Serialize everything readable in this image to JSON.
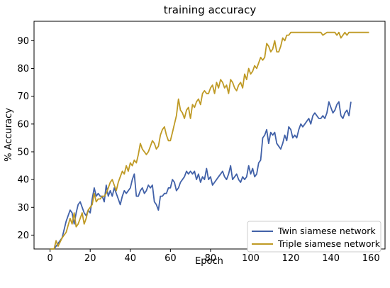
{
  "chart_data": {
    "type": "line",
    "title": "training accuracy",
    "xlabel": "Epoch",
    "ylabel": "% Accuracy",
    "xlim": [
      -8,
      167
    ],
    "ylim": [
      15,
      97
    ],
    "x_ticks": [
      0,
      20,
      40,
      60,
      80,
      100,
      120,
      140,
      160
    ],
    "y_ticks": [
      20,
      30,
      40,
      50,
      60,
      70,
      80,
      90
    ],
    "grid": false,
    "legend_position": "lower right",
    "series": [
      {
        "name": "Twin siamese network",
        "color": "#4161a8",
        "points": [
          [
            0,
            15
          ],
          [
            2,
            15
          ],
          [
            4,
            17
          ],
          [
            6,
            19
          ],
          [
            8,
            25
          ],
          [
            10,
            29
          ],
          [
            11,
            28
          ],
          [
            12,
            24
          ],
          [
            13,
            28
          ],
          [
            14,
            31
          ],
          [
            15,
            32
          ],
          [
            16,
            30
          ],
          [
            17,
            28
          ],
          [
            18,
            27
          ],
          [
            19,
            29
          ],
          [
            20,
            28
          ],
          [
            21,
            33
          ],
          [
            22,
            37
          ],
          [
            23,
            34
          ],
          [
            24,
            35
          ],
          [
            25,
            34
          ],
          [
            26,
            34
          ],
          [
            27,
            32
          ],
          [
            28,
            38
          ],
          [
            29,
            34
          ],
          [
            30,
            36
          ],
          [
            31,
            34
          ],
          [
            32,
            37
          ],
          [
            33,
            35
          ],
          [
            34,
            33
          ],
          [
            35,
            31
          ],
          [
            36,
            34
          ],
          [
            37,
            36
          ],
          [
            38,
            35
          ],
          [
            39,
            36
          ],
          [
            40,
            37
          ],
          [
            41,
            40
          ],
          [
            42,
            42
          ],
          [
            43,
            34
          ],
          [
            44,
            34
          ],
          [
            45,
            36
          ],
          [
            46,
            37
          ],
          [
            47,
            35
          ],
          [
            48,
            36
          ],
          [
            49,
            38
          ],
          [
            50,
            37
          ],
          [
            51,
            38
          ],
          [
            52,
            32
          ],
          [
            53,
            31
          ],
          [
            54,
            29
          ],
          [
            55,
            34
          ],
          [
            56,
            34
          ],
          [
            57,
            35
          ],
          [
            58,
            35
          ],
          [
            59,
            37
          ],
          [
            60,
            37
          ],
          [
            61,
            40
          ],
          [
            62,
            39
          ],
          [
            63,
            36
          ],
          [
            64,
            37
          ],
          [
            65,
            39
          ],
          [
            66,
            40
          ],
          [
            67,
            41
          ],
          [
            68,
            43
          ],
          [
            69,
            42
          ],
          [
            70,
            43
          ],
          [
            71,
            42
          ],
          [
            72,
            43
          ],
          [
            73,
            40
          ],
          [
            74,
            42
          ],
          [
            75,
            39
          ],
          [
            76,
            41
          ],
          [
            77,
            40
          ],
          [
            78,
            44
          ],
          [
            79,
            40
          ],
          [
            80,
            41
          ],
          [
            81,
            38
          ],
          [
            82,
            39
          ],
          [
            83,
            40
          ],
          [
            84,
            41
          ],
          [
            85,
            42
          ],
          [
            86,
            43
          ],
          [
            87,
            41
          ],
          [
            88,
            40
          ],
          [
            89,
            42
          ],
          [
            90,
            45
          ],
          [
            91,
            40
          ],
          [
            92,
            41
          ],
          [
            93,
            42
          ],
          [
            94,
            40
          ],
          [
            95,
            39
          ],
          [
            96,
            41
          ],
          [
            97,
            40
          ],
          [
            98,
            41
          ],
          [
            99,
            45
          ],
          [
            100,
            42
          ],
          [
            101,
            44
          ],
          [
            102,
            41
          ],
          [
            103,
            42
          ],
          [
            104,
            46
          ],
          [
            105,
            47
          ],
          [
            106,
            55
          ],
          [
            107,
            56
          ],
          [
            108,
            58
          ],
          [
            109,
            53
          ],
          [
            110,
            57
          ],
          [
            111,
            56
          ],
          [
            112,
            57
          ],
          [
            113,
            53
          ],
          [
            114,
            52
          ],
          [
            115,
            51
          ],
          [
            116,
            53
          ],
          [
            117,
            56
          ],
          [
            118,
            54
          ],
          [
            119,
            59
          ],
          [
            120,
            58
          ],
          [
            121,
            55
          ],
          [
            122,
            56
          ],
          [
            123,
            55
          ],
          [
            124,
            58
          ],
          [
            125,
            60
          ],
          [
            126,
            59
          ],
          [
            127,
            60
          ],
          [
            128,
            61
          ],
          [
            129,
            62
          ],
          [
            130,
            60
          ],
          [
            131,
            63
          ],
          [
            132,
            64
          ],
          [
            133,
            63
          ],
          [
            134,
            62
          ],
          [
            135,
            62
          ],
          [
            136,
            63
          ],
          [
            137,
            62
          ],
          [
            138,
            64
          ],
          [
            139,
            68
          ],
          [
            140,
            66
          ],
          [
            141,
            64
          ],
          [
            142,
            65
          ],
          [
            143,
            67
          ],
          [
            144,
            68
          ],
          [
            145,
            63
          ],
          [
            146,
            62
          ],
          [
            147,
            64
          ],
          [
            148,
            65
          ],
          [
            149,
            63
          ],
          [
            150,
            68
          ]
        ]
      },
      {
        "name": "Triple siamese network",
        "color": "#bf9a25",
        "points": [
          [
            0,
            15
          ],
          [
            2,
            15
          ],
          [
            3,
            18
          ],
          [
            4,
            16
          ],
          [
            6,
            19
          ],
          [
            8,
            21
          ],
          [
            10,
            26
          ],
          [
            11,
            24
          ],
          [
            12,
            28
          ],
          [
            13,
            23
          ],
          [
            14,
            24
          ],
          [
            15,
            26
          ],
          [
            16,
            28
          ],
          [
            17,
            24
          ],
          [
            18,
            26
          ],
          [
            19,
            29
          ],
          [
            20,
            30
          ],
          [
            21,
            31
          ],
          [
            22,
            35
          ],
          [
            23,
            32
          ],
          [
            24,
            33
          ],
          [
            25,
            33
          ],
          [
            26,
            34
          ],
          [
            27,
            34
          ],
          [
            28,
            35
          ],
          [
            29,
            37
          ],
          [
            30,
            39
          ],
          [
            31,
            40
          ],
          [
            32,
            38
          ],
          [
            33,
            36
          ],
          [
            34,
            39
          ],
          [
            35,
            41
          ],
          [
            36,
            43
          ],
          [
            37,
            42
          ],
          [
            38,
            45
          ],
          [
            39,
            43
          ],
          [
            40,
            46
          ],
          [
            41,
            45
          ],
          [
            42,
            47
          ],
          [
            43,
            46
          ],
          [
            44,
            49
          ],
          [
            45,
            53
          ],
          [
            46,
            51
          ],
          [
            47,
            50
          ],
          [
            48,
            49
          ],
          [
            49,
            50
          ],
          [
            50,
            52
          ],
          [
            51,
            54
          ],
          [
            52,
            53
          ],
          [
            53,
            51
          ],
          [
            54,
            52
          ],
          [
            55,
            56
          ],
          [
            56,
            58
          ],
          [
            57,
            59
          ],
          [
            58,
            56
          ],
          [
            59,
            54
          ],
          [
            60,
            54
          ],
          [
            61,
            57
          ],
          [
            62,
            60
          ],
          [
            63,
            63
          ],
          [
            64,
            69
          ],
          [
            65,
            65
          ],
          [
            66,
            64
          ],
          [
            67,
            62
          ],
          [
            68,
            65
          ],
          [
            69,
            66
          ],
          [
            70,
            62
          ],
          [
            71,
            67
          ],
          [
            72,
            66
          ],
          [
            73,
            68
          ],
          [
            74,
            69
          ],
          [
            75,
            67
          ],
          [
            76,
            71
          ],
          [
            77,
            72
          ],
          [
            78,
            71
          ],
          [
            79,
            71
          ],
          [
            80,
            73
          ],
          [
            81,
            74
          ],
          [
            82,
            71
          ],
          [
            83,
            75
          ],
          [
            84,
            73
          ],
          [
            85,
            76
          ],
          [
            86,
            75
          ],
          [
            87,
            73
          ],
          [
            88,
            74
          ],
          [
            89,
            71
          ],
          [
            90,
            76
          ],
          [
            91,
            75
          ],
          [
            92,
            73
          ],
          [
            93,
            72
          ],
          [
            94,
            74
          ],
          [
            95,
            75
          ],
          [
            96,
            73
          ],
          [
            97,
            78
          ],
          [
            98,
            76
          ],
          [
            99,
            80
          ],
          [
            100,
            78
          ],
          [
            101,
            79
          ],
          [
            102,
            81
          ],
          [
            103,
            80
          ],
          [
            104,
            82
          ],
          [
            105,
            84
          ],
          [
            106,
            83
          ],
          [
            107,
            84
          ],
          [
            108,
            89
          ],
          [
            109,
            88
          ],
          [
            110,
            86
          ],
          [
            111,
            87
          ],
          [
            112,
            90
          ],
          [
            113,
            86
          ],
          [
            114,
            86
          ],
          [
            115,
            88
          ],
          [
            116,
            91
          ],
          [
            117,
            90
          ],
          [
            118,
            92
          ],
          [
            119,
            92
          ],
          [
            120,
            93
          ],
          [
            125,
            93
          ],
          [
            130,
            93
          ],
          [
            135,
            93
          ],
          [
            136,
            92
          ],
          [
            138,
            93
          ],
          [
            140,
            93
          ],
          [
            142,
            93
          ],
          [
            143,
            92
          ],
          [
            144,
            93
          ],
          [
            145,
            91
          ],
          [
            146,
            92
          ],
          [
            147,
            93
          ],
          [
            148,
            92
          ],
          [
            149,
            93
          ],
          [
            150,
            93
          ],
          [
            155,
            93
          ],
          [
            159,
            93
          ]
        ]
      }
    ]
  }
}
